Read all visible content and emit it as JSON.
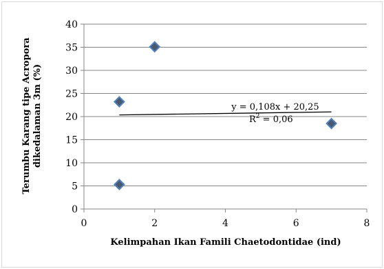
{
  "chart_data": {
    "type": "scatter",
    "title": "",
    "xlabel": "Kelimpahan Ikan Famili Chaetodontidae (ind)",
    "ylabel_line1": "Terumbu Karang tipe Acropora",
    "ylabel_line2": "dikedalaman  3m  (%)",
    "xlim": [
      0,
      8
    ],
    "ylim": [
      0,
      40
    ],
    "xticks": [
      0,
      2,
      4,
      6,
      8
    ],
    "yticks": [
      0,
      5,
      10,
      15,
      20,
      25,
      30,
      35,
      40
    ],
    "grid": "horizontal",
    "legend": "none",
    "series": [
      {
        "points": [
          {
            "x": 1,
            "y": 5.3
          },
          {
            "x": 1,
            "y": 23.2
          },
          {
            "x": 2,
            "y": 35.1
          },
          {
            "x": 7,
            "y": 18.5
          }
        ]
      }
    ],
    "trendline": {
      "slope": 0.108,
      "intercept": 20.25,
      "x_range": [
        1,
        7
      ],
      "equation_label": "y = 0,108x + 20,25",
      "r2_label": "R",
      "r2_value_label": " = 0,06",
      "r2_exponent": "2"
    },
    "colors": {
      "marker_fill": "#4a5a6e",
      "marker_stroke": "#4f81bd",
      "grid": "#868686",
      "axis": "#868686",
      "trendline": "#000000"
    }
  }
}
